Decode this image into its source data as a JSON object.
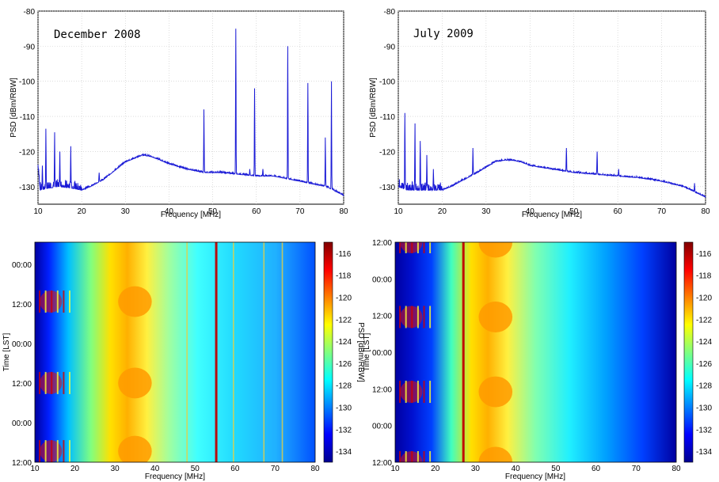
{
  "chart_data": [
    {
      "type": "line",
      "title": "December 2008",
      "xlabel": "Frequency [MHz]",
      "ylabel": "PSD [dBm/RBW]",
      "xlim": [
        10,
        80
      ],
      "ylim": [
        -135,
        -80
      ],
      "x_ticks": [
        "10",
        "20",
        "30",
        "40",
        "50",
        "60",
        "70",
        "80"
      ],
      "y_ticks": [
        "-80",
        "-90",
        "-100",
        "-110",
        "-120",
        "-130"
      ],
      "grid": true,
      "line_color": "#1a1ad6",
      "series": [
        {
          "baseline": [
            [
              10,
              -124
            ],
            [
              10.5,
              -131
            ],
            [
              12,
              -130.5
            ],
            [
              15,
              -130
            ],
            [
              18,
              -130.5
            ],
            [
              20,
              -131
            ],
            [
              22,
              -130
            ],
            [
              25,
              -128
            ],
            [
              28,
              -125
            ],
            [
              30,
              -123
            ],
            [
              32,
              -122
            ],
            [
              34,
              -121
            ],
            [
              36,
              -121.5
            ],
            [
              38,
              -122.5
            ],
            [
              40,
              -123.5
            ],
            [
              44,
              -125
            ],
            [
              48,
              -126
            ],
            [
              52,
              -126
            ],
            [
              56,
              -126.5
            ],
            [
              60,
              -127
            ],
            [
              64,
              -127
            ],
            [
              68,
              -128
            ],
            [
              72,
              -129
            ],
            [
              76,
              -130
            ],
            [
              80,
              -132.5
            ]
          ],
          "peaks": [
            [
              11,
              -124
            ],
            [
              11.8,
              -113.5
            ],
            [
              13.8,
              -114.5
            ],
            [
              15,
              -120
            ],
            [
              17.5,
              -118.5
            ],
            [
              24,
              -126
            ],
            [
              48,
              -108
            ],
            [
              55.3,
              -85
            ],
            [
              58.5,
              -125
            ],
            [
              59.6,
              -102
            ],
            [
              61.5,
              -125
            ],
            [
              67.2,
              -90
            ],
            [
              71.8,
              -100.5
            ],
            [
              75.8,
              -116
            ],
            [
              77.2,
              -100
            ]
          ]
        }
      ]
    },
    {
      "type": "line",
      "title": "July 2009",
      "xlabel": "Frequency [MHz]",
      "ylabel": "PSD [dBm/RBW]",
      "xlim": [
        10,
        80
      ],
      "ylim": [
        -135,
        -80
      ],
      "x_ticks": [
        "10",
        "20",
        "30",
        "40",
        "50",
        "60",
        "70",
        "80"
      ],
      "y_ticks": [
        "-80",
        "-90",
        "-100",
        "-110",
        "-120",
        "-130"
      ],
      "grid": true,
      "line_color": "#1a1ad6",
      "series": [
        {
          "baseline": [
            [
              10,
              -130
            ],
            [
              12,
              -131
            ],
            [
              15,
              -131
            ],
            [
              18,
              -131
            ],
            [
              20,
              -131
            ],
            [
              22,
              -130
            ],
            [
              25,
              -128
            ],
            [
              28,
              -126
            ],
            [
              30,
              -124.5
            ],
            [
              32,
              -123
            ],
            [
              34,
              -122.5
            ],
            [
              36,
              -122.5
            ],
            [
              38,
              -123
            ],
            [
              40,
              -124
            ],
            [
              45,
              -125
            ],
            [
              50,
              -126
            ],
            [
              55,
              -126.5
            ],
            [
              60,
              -127
            ],
            [
              65,
              -127.5
            ],
            [
              70,
              -128.5
            ],
            [
              75,
              -130
            ],
            [
              80,
              -133
            ]
          ],
          "peaks": [
            [
              11.5,
              -109
            ],
            [
              13.8,
              -112
            ],
            [
              15,
              -117
            ],
            [
              16.5,
              -121
            ],
            [
              18,
              -125
            ],
            [
              27,
              -119
            ],
            [
              48.3,
              -119
            ],
            [
              55.3,
              -120
            ],
            [
              60.2,
              -125
            ],
            [
              77.5,
              -129
            ]
          ]
        }
      ]
    },
    {
      "type": "heatmap",
      "title": "",
      "xlabel": "Frequency [MHz]",
      "ylabel": "Time [LST]",
      "xlim": [
        10,
        80
      ],
      "x_ticks": [
        "10",
        "20",
        "30",
        "40",
        "50",
        "60",
        "70",
        "80"
      ],
      "y_ticks": [
        "00:00",
        "12:00",
        "00:00",
        "12:00",
        "00:00",
        "12:00"
      ],
      "colorbar": {
        "label": "PSD [dBm/RBW]",
        "range": [
          -135,
          -115
        ],
        "ticks": [
          "-116",
          "-118",
          "-120",
          "-122",
          "-124",
          "-126",
          "-128",
          "-130",
          "-132",
          "-134"
        ]
      },
      "vertical_lines_mhz": [
        48,
        55.3,
        59.6,
        67.2,
        71.8
      ],
      "strong_line_mhz": 55.3
    },
    {
      "type": "heatmap",
      "title": "",
      "xlabel": "Frequency [MHz]",
      "ylabel": "Time [LST]",
      "xlim": [
        10,
        80
      ],
      "x_ticks": [
        "10",
        "20",
        "30",
        "40",
        "50",
        "60",
        "70",
        "80"
      ],
      "y_ticks": [
        "12:00",
        "00:00",
        "12:00",
        "00:00",
        "12:00",
        "00:00",
        "12:00"
      ],
      "colorbar": {
        "label": "PSD [dBm/RBW]",
        "range": [
          -135,
          -115
        ],
        "ticks": [
          "-116",
          "-118",
          "-120",
          "-122",
          "-124",
          "-126",
          "-128",
          "-130",
          "-132",
          "-134"
        ]
      },
      "vertical_lines_mhz": [
        27
      ],
      "strong_line_mhz": 27
    }
  ]
}
